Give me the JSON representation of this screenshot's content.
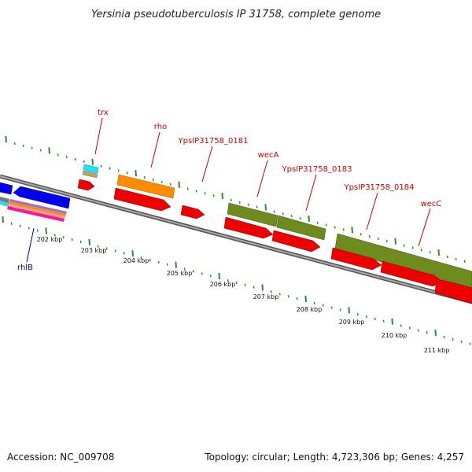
{
  "title": "Yersinia pseudotuberculosis IP 31758, complete genome",
  "footer": {
    "accession": "Accession: NC_009708",
    "summary": "Topology: circular; Length: 4,723,306 bp; Genes: 4,257"
  },
  "colors": {
    "backbone": "#888888",
    "tick": "#2e8b2e",
    "cds": "#ee0000",
    "gene_label": "#cc0000",
    "minus_label": "#000099"
  },
  "scale_labels": [
    "202 kbp",
    "203 kbp",
    "204 kbp",
    "205 kbp",
    "206 kbp",
    "207 kbp",
    "208 kbp",
    "209 kbp",
    "210 kbp",
    "211 kbp"
  ],
  "gene_labels": [
    {
      "name": "trx",
      "strand": "plus"
    },
    {
      "name": "rho",
      "strand": "plus"
    },
    {
      "name": "YpsIP31758_0181",
      "strand": "plus"
    },
    {
      "name": "wecA",
      "strand": "plus"
    },
    {
      "name": "YpsIP31758_0183",
      "strand": "plus"
    },
    {
      "name": "YpsIP31758_0184",
      "strand": "plus"
    },
    {
      "name": "wecC",
      "strand": "plus"
    },
    {
      "name": "rhlB",
      "strand": "minus"
    }
  ]
}
